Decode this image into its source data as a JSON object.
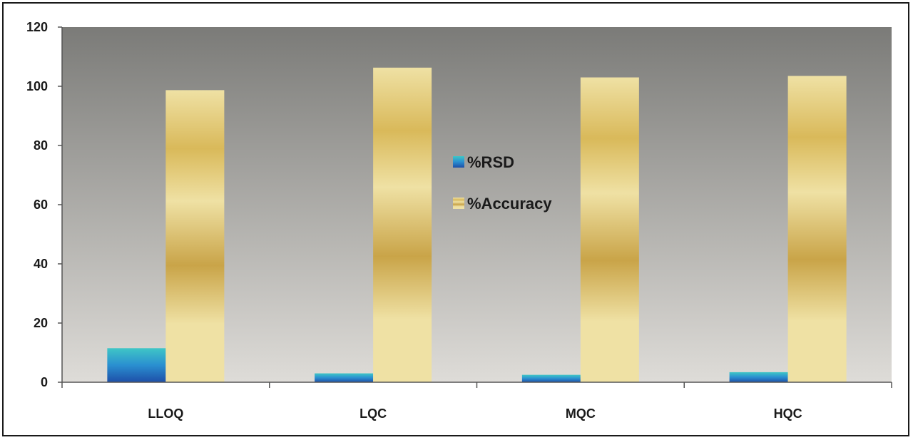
{
  "chart_data": {
    "type": "bar",
    "title": "",
    "xlabel": "",
    "ylabel": "",
    "categories": [
      "LLOQ",
      "LQC",
      "MQC",
      "HQC"
    ],
    "series": [
      {
        "name": "%RSD",
        "values": [
          11.5,
          3.0,
          2.5,
          3.4
        ],
        "color": "#2a8fd0"
      },
      {
        "name": "%Accuracy",
        "values": [
          98.7,
          106.3,
          103.0,
          103.5
        ],
        "color": "#d9b95a"
      }
    ],
    "ylim": [
      0,
      120
    ],
    "yticks": [
      0,
      20,
      40,
      60,
      80,
      100,
      120
    ],
    "grid": false,
    "legend_position": "center"
  },
  "colors": {
    "plot_background_top": "#7b7b78",
    "plot_background_bottom": "#dedcd8",
    "rsd_dark": "#1e4fa8",
    "rsd_light": "#3fc6c6",
    "accuracy_light": "#efe1a4",
    "accuracy_dark": "#c9a448"
  }
}
